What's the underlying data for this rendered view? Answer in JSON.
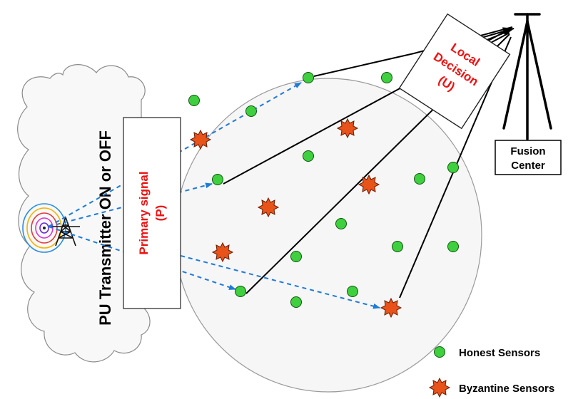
{
  "cloud_label": "PU Transmitter ON or OFF",
  "primary_signal": {
    "line1": "Primary signal",
    "line2": "(P)"
  },
  "local_decision": {
    "line1": "Local",
    "line2": "Decision",
    "line3": "(U)"
  },
  "fusion_center": {
    "line1": "Fusion",
    "line2": "Center"
  },
  "legend": {
    "honest": "Honest Sensors",
    "byzantine": "Byzantine Sensors"
  },
  "colors": {
    "honest_fill": "#3ed03e",
    "byzantine_fill": "#e8531a",
    "arrow": "#1e7bd6",
    "label_red": "#ee1111",
    "line": "#000000"
  }
}
